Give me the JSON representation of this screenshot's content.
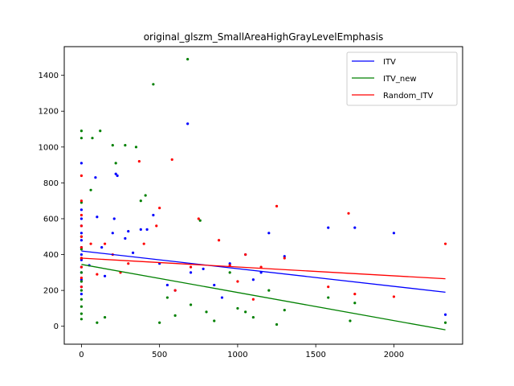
{
  "chart_data": {
    "type": "scatter",
    "title": "original_glszm_SmallAreaHighGrayLevelEmphasis",
    "xlabel": "",
    "ylabel": "",
    "xlim": [
      -110,
      2440
    ],
    "ylim": [
      -100,
      1560
    ],
    "xticks": [
      0,
      500,
      1000,
      1500,
      2000
    ],
    "yticks": [
      0,
      200,
      400,
      600,
      800,
      1000,
      1200,
      1400
    ],
    "grid": false,
    "legend": {
      "placement": "top-right"
    },
    "series": [
      {
        "name": "ITV",
        "color": "#0000ff",
        "fit_line": {
          "x": [
            0,
            2330
          ],
          "y": [
            420,
            190
          ]
        },
        "points": [
          [
            0,
            910
          ],
          [
            0,
            650
          ],
          [
            0,
            600
          ],
          [
            0,
            560
          ],
          [
            0,
            520
          ],
          [
            0,
            480
          ],
          [
            0,
            440
          ],
          [
            0,
            400
          ],
          [
            0,
            370
          ],
          [
            0,
            330
          ],
          [
            0,
            300
          ],
          [
            0,
            260
          ],
          [
            0,
            220
          ],
          [
            0,
            180
          ],
          [
            50,
            340
          ],
          [
            90,
            830
          ],
          [
            100,
            610
          ],
          [
            130,
            440
          ],
          [
            150,
            280
          ],
          [
            200,
            520
          ],
          [
            210,
            600
          ],
          [
            220,
            850
          ],
          [
            230,
            840
          ],
          [
            280,
            490
          ],
          [
            300,
            530
          ],
          [
            330,
            410
          ],
          [
            380,
            540
          ],
          [
            420,
            540
          ],
          [
            460,
            620
          ],
          [
            500,
            350
          ],
          [
            550,
            230
          ],
          [
            600,
            200
          ],
          [
            680,
            1130
          ],
          [
            700,
            300
          ],
          [
            780,
            320
          ],
          [
            850,
            230
          ],
          [
            900,
            160
          ],
          [
            950,
            350
          ],
          [
            1050,
            400
          ],
          [
            1100,
            260
          ],
          [
            1150,
            300
          ],
          [
            1200,
            520
          ],
          [
            1300,
            390
          ],
          [
            1580,
            550
          ],
          [
            1750,
            550
          ],
          [
            2000,
            520
          ],
          [
            2330,
            65
          ]
        ]
      },
      {
        "name": "ITV_new",
        "color": "#008000",
        "fit_line": {
          "x": [
            0,
            2330
          ],
          "y": [
            345,
            -20
          ]
        },
        "points": [
          [
            0,
            1090
          ],
          [
            0,
            1050
          ],
          [
            0,
            690
          ],
          [
            0,
            500
          ],
          [
            0,
            430
          ],
          [
            0,
            380
          ],
          [
            0,
            300
          ],
          [
            0,
            250
          ],
          [
            0,
            200
          ],
          [
            0,
            150
          ],
          [
            0,
            110
          ],
          [
            0,
            70
          ],
          [
            0,
            40
          ],
          [
            60,
            760
          ],
          [
            70,
            1050
          ],
          [
            100,
            20
          ],
          [
            120,
            1090
          ],
          [
            150,
            50
          ],
          [
            200,
            1010
          ],
          [
            220,
            910
          ],
          [
            280,
            1010
          ],
          [
            350,
            1000
          ],
          [
            380,
            700
          ],
          [
            410,
            730
          ],
          [
            460,
            1350
          ],
          [
            500,
            20
          ],
          [
            550,
            160
          ],
          [
            600,
            60
          ],
          [
            680,
            1490
          ],
          [
            700,
            120
          ],
          [
            760,
            590
          ],
          [
            800,
            80
          ],
          [
            850,
            30
          ],
          [
            950,
            300
          ],
          [
            1000,
            100
          ],
          [
            1050,
            80
          ],
          [
            1100,
            50
          ],
          [
            1200,
            200
          ],
          [
            1250,
            10
          ],
          [
            1300,
            90
          ],
          [
            1580,
            160
          ],
          [
            1720,
            30
          ],
          [
            1750,
            130
          ],
          [
            2330,
            20
          ]
        ]
      },
      {
        "name": "Random_ITV",
        "color": "#ff0000",
        "fit_line": {
          "x": [
            0,
            2330
          ],
          "y": [
            380,
            265
          ]
        },
        "points": [
          [
            0,
            840
          ],
          [
            0,
            700
          ],
          [
            0,
            620
          ],
          [
            0,
            560
          ],
          [
            0,
            500
          ],
          [
            0,
            440
          ],
          [
            0,
            380
          ],
          [
            0,
            330
          ],
          [
            0,
            270
          ],
          [
            0,
            220
          ],
          [
            60,
            460
          ],
          [
            100,
            290
          ],
          [
            150,
            460
          ],
          [
            200,
            400
          ],
          [
            250,
            300
          ],
          [
            300,
            350
          ],
          [
            370,
            920
          ],
          [
            400,
            460
          ],
          [
            480,
            560
          ],
          [
            500,
            660
          ],
          [
            580,
            930
          ],
          [
            600,
            200
          ],
          [
            700,
            330
          ],
          [
            750,
            600
          ],
          [
            880,
            480
          ],
          [
            950,
            340
          ],
          [
            1000,
            250
          ],
          [
            1050,
            400
          ],
          [
            1100,
            150
          ],
          [
            1150,
            330
          ],
          [
            1250,
            670
          ],
          [
            1300,
            380
          ],
          [
            1580,
            220
          ],
          [
            1710,
            630
          ],
          [
            1750,
            180
          ],
          [
            2000,
            165
          ],
          [
            2330,
            460
          ]
        ]
      }
    ]
  }
}
